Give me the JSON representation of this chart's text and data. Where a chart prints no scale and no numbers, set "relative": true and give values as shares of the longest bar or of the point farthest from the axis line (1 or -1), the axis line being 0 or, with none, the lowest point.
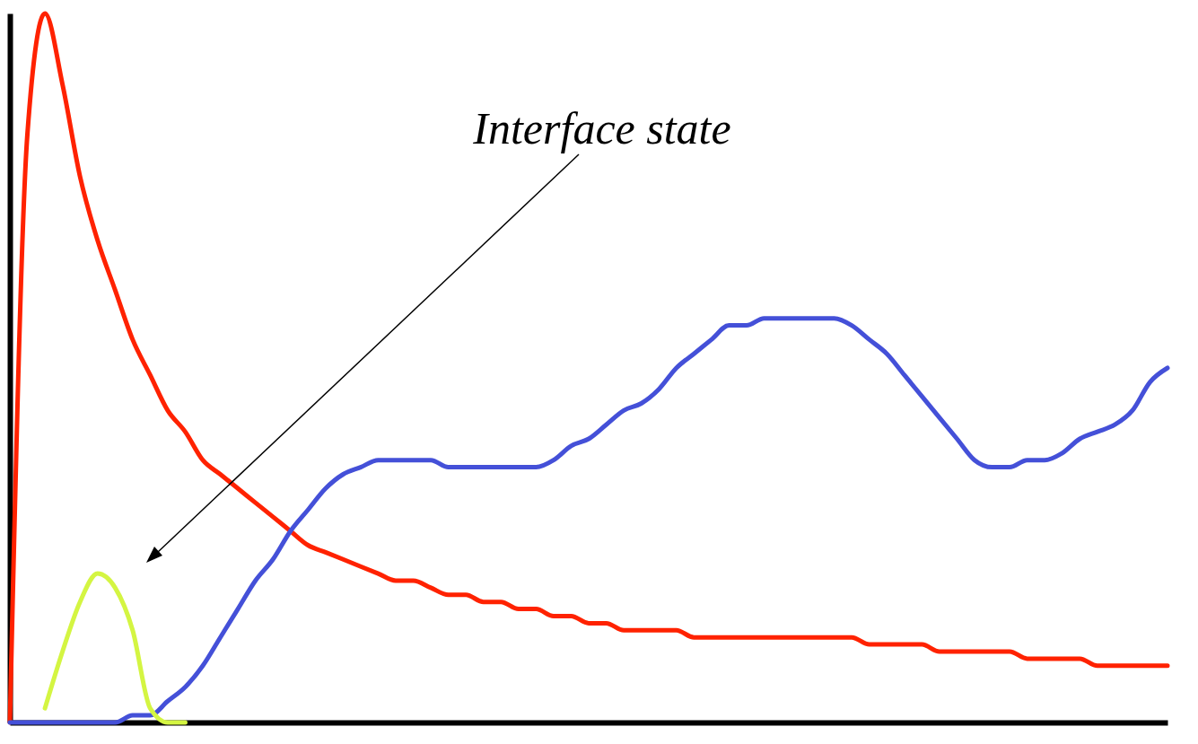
{
  "chart_data": {
    "type": "line",
    "relative": true,
    "grid": false,
    "legend": false,
    "categories": [
      null,
      null,
      null,
      null,
      null,
      null,
      null,
      null,
      null,
      null,
      null,
      null,
      null,
      null,
      null,
      null,
      null,
      null,
      null,
      null,
      null,
      null,
      null,
      null,
      null,
      null,
      null,
      null,
      null,
      null,
      null,
      null,
      null,
      null,
      null,
      null,
      null,
      null,
      null,
      null,
      null,
      null,
      null,
      null,
      null,
      null,
      null,
      null,
      null,
      null,
      null,
      null,
      null,
      null,
      null,
      null,
      null,
      null,
      null,
      null,
      null,
      null,
      null,
      null,
      null,
      null,
      null
    ],
    "series": [
      {
        "color": "#ff2200",
        "values": [
          0,
          0.83,
          1.0,
          0.9,
          0.77,
          0.68,
          0.61,
          0.54,
          0.49,
          0.44,
          0.41,
          0.37,
          0.35,
          0.33,
          0.31,
          0.29,
          0.27,
          0.25,
          0.24,
          0.23,
          0.22,
          0.21,
          0.2,
          0.2,
          0.19,
          0.18,
          0.18,
          0.17,
          0.17,
          0.16,
          0.16,
          0.15,
          0.15,
          0.14,
          0.14,
          0.13,
          0.13,
          0.13,
          0.13,
          0.12,
          0.12,
          0.12,
          0.12,
          0.12,
          0.12,
          0.12,
          0.12,
          0.12,
          0.12,
          0.11,
          0.11,
          0.11,
          0.11,
          0.1,
          0.1,
          0.1,
          0.1,
          0.1,
          0.09,
          0.09,
          0.09,
          0.09,
          0.08,
          0.08,
          0.08,
          0.08,
          0.08
        ]
      },
      {
        "color": "#4450d8",
        "values": [
          0,
          0,
          0,
          0,
          0,
          0,
          0,
          0.01,
          0.01,
          0.03,
          0.05,
          0.08,
          0.12,
          0.16,
          0.2,
          0.23,
          0.27,
          0.3,
          0.33,
          0.35,
          0.36,
          0.37,
          0.37,
          0.37,
          0.37,
          0.36,
          0.36,
          0.36,
          0.36,
          0.36,
          0.36,
          0.37,
          0.39,
          0.4,
          0.42,
          0.44,
          0.45,
          0.47,
          0.5,
          0.52,
          0.54,
          0.56,
          0.56,
          0.57,
          0.57,
          0.57,
          0.57,
          0.57,
          0.56,
          0.54,
          0.52,
          0.49,
          0.46,
          0.43,
          0.4,
          0.37,
          0.36,
          0.36,
          0.37,
          0.37,
          0.38,
          0.4,
          0.41,
          0.42,
          0.44,
          0.48,
          0.5
        ]
      },
      {
        "color": "#d4f542",
        "values": [
          null,
          null,
          0.02,
          0.1,
          0.17,
          0.21,
          0.19,
          0.13,
          0.02,
          0,
          0,
          null,
          null,
          null,
          null,
          null,
          null,
          null,
          null,
          null,
          null,
          null,
          null,
          null,
          null,
          null,
          null,
          null,
          null,
          null,
          null,
          null,
          null,
          null,
          null,
          null,
          null,
          null,
          null,
          null,
          null,
          null,
          null,
          null,
          null,
          null,
          null,
          null,
          null,
          null,
          null,
          null,
          null,
          null,
          null,
          null,
          null,
          null,
          null,
          null,
          null,
          null,
          null,
          null,
          null,
          null,
          null
        ]
      }
    ],
    "annotations": [
      "Interface state"
    ]
  }
}
